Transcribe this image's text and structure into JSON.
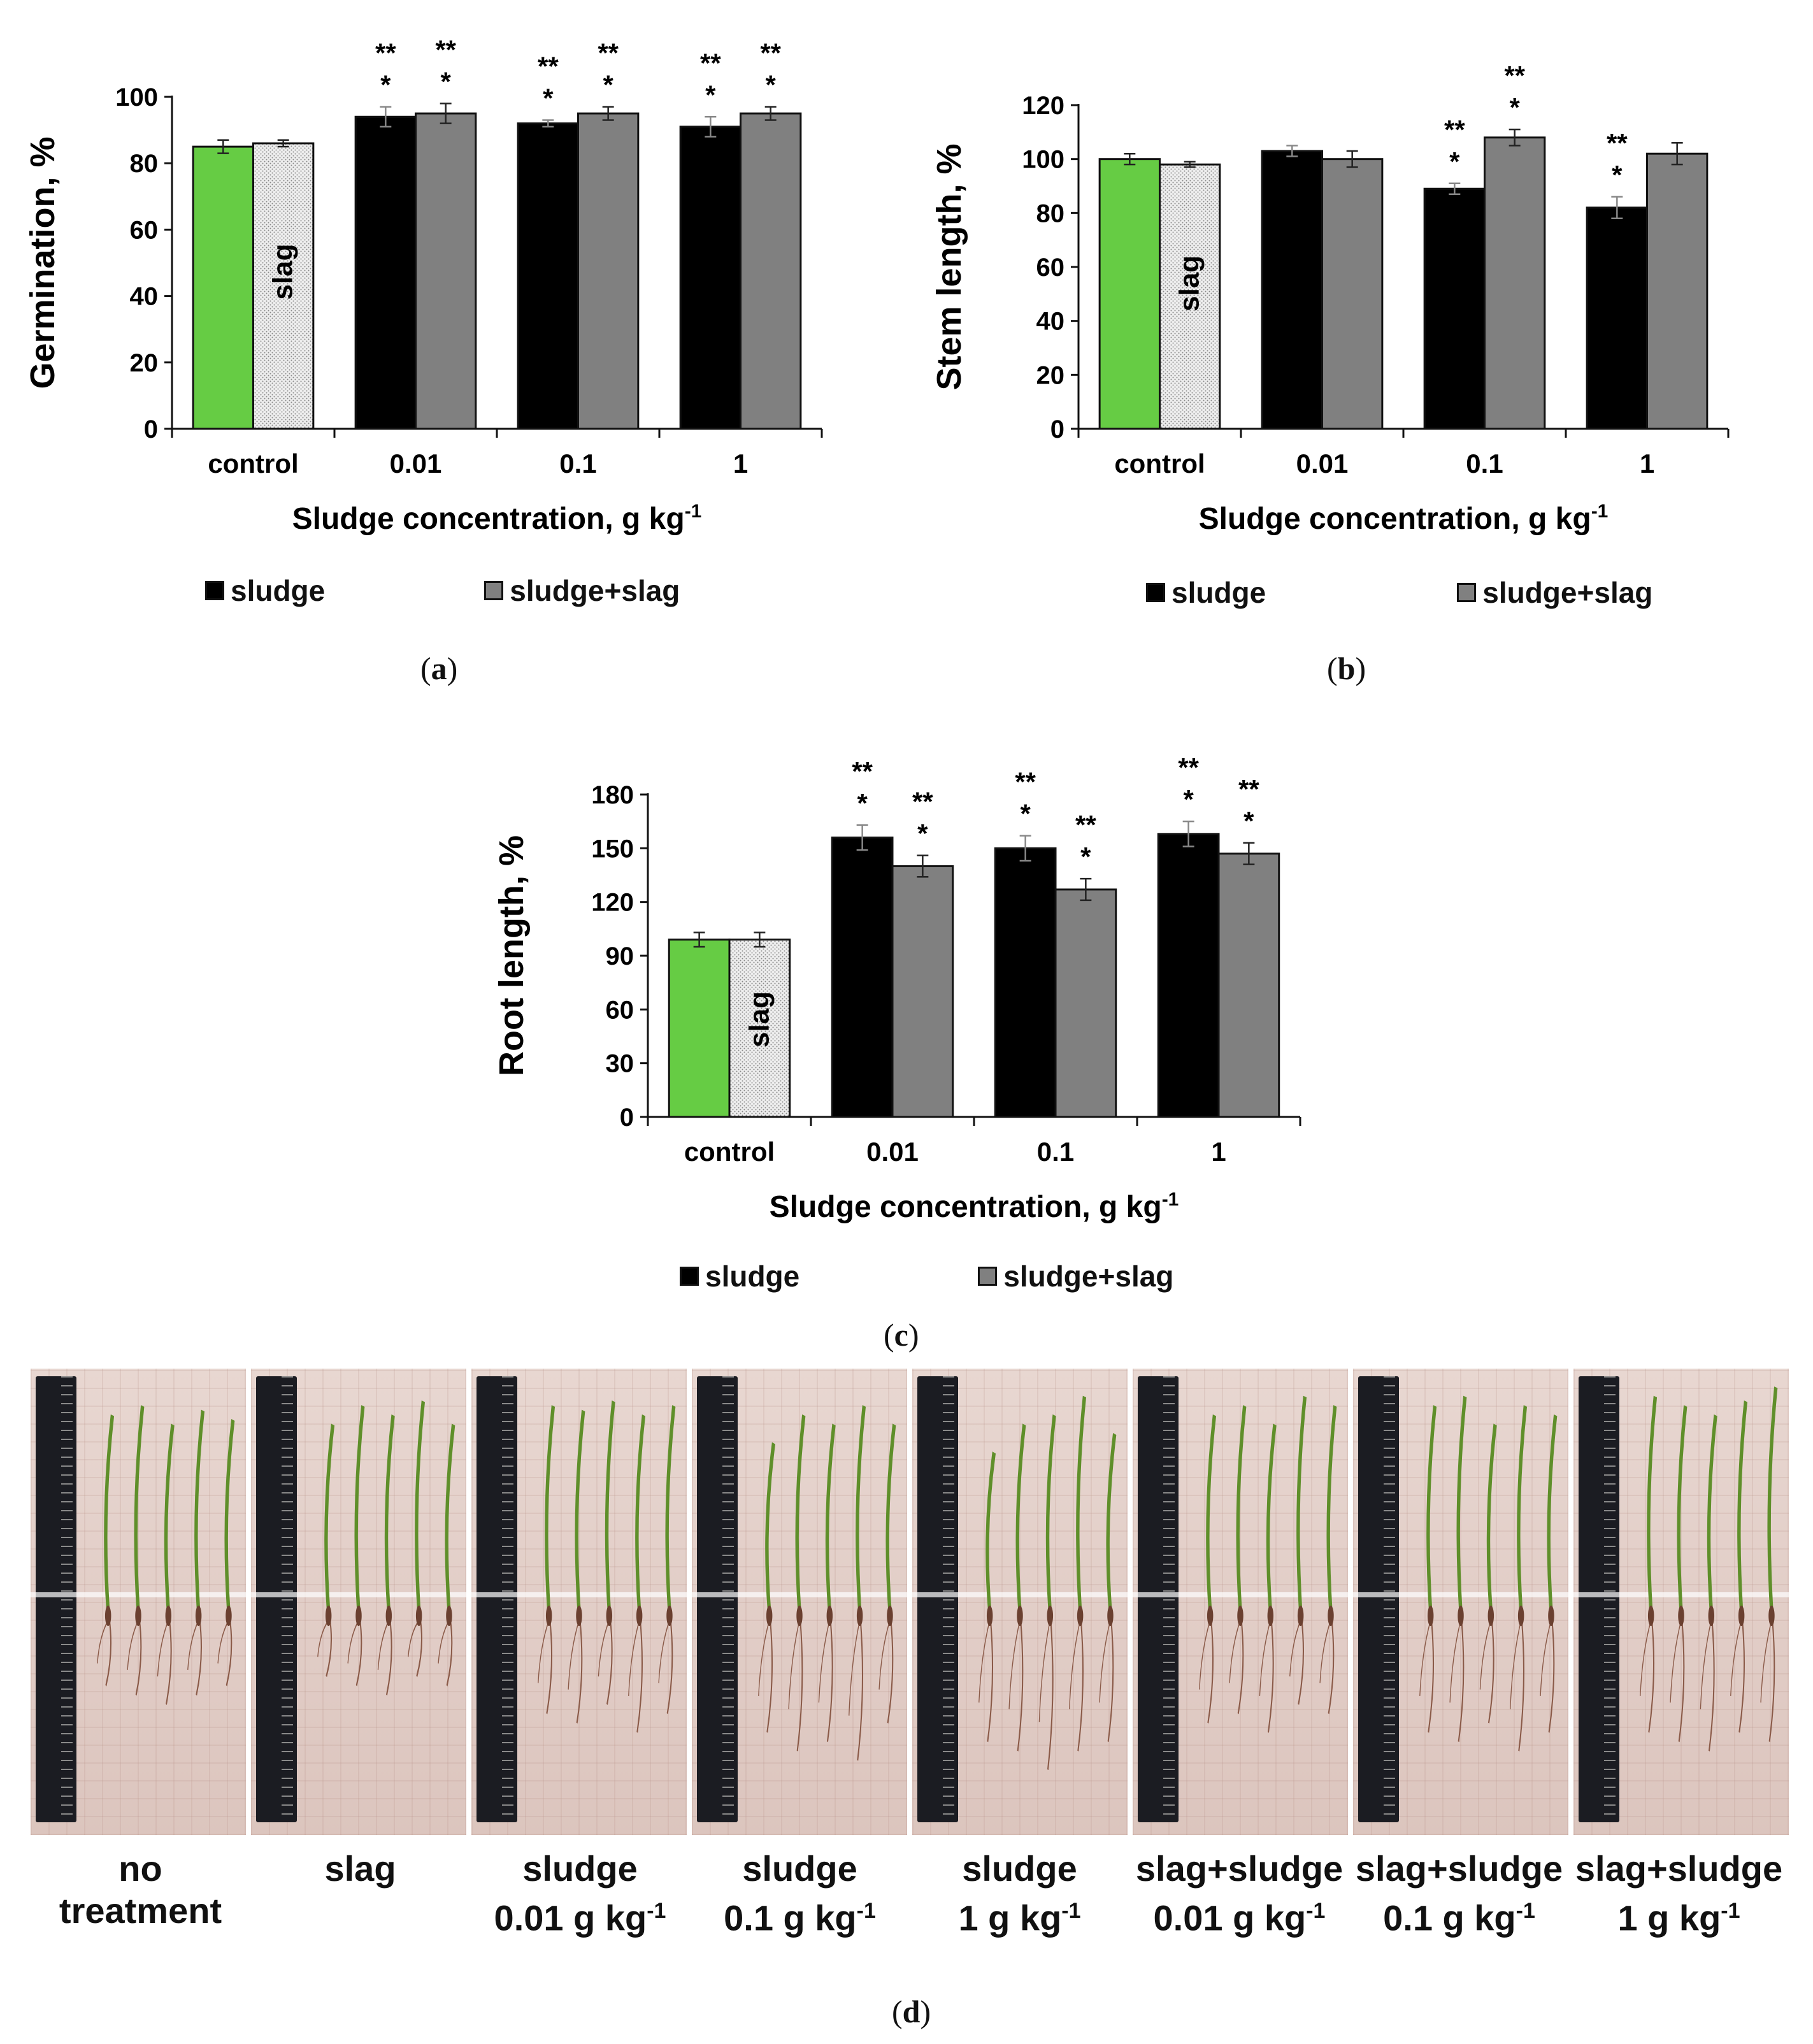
{
  "colors": {
    "control": "#66cc44",
    "sludge": "#000000",
    "sludge_slag": "#808080",
    "slag_fill": "#eeeeee"
  },
  "chart_data": [
    {
      "type": "bar",
      "panel": "a",
      "ylabel": "Germination, %",
      "xlabel_main": "Sludge concentration, g kg",
      "xlabel_sup": "-1",
      "ylim": [
        0,
        100
      ],
      "yticks": [
        0,
        20,
        40,
        60,
        80,
        100
      ],
      "categories": [
        "control",
        "0.01",
        "0.1",
        "1"
      ],
      "bar_inside_label": "slag",
      "series": [
        {
          "name": "sludge",
          "values": [
            85,
            94,
            92,
            91
          ],
          "errors": [
            2,
            3,
            1,
            3
          ],
          "marks": [
            "",
            "**|*",
            "**|*",
            "**|*"
          ]
        },
        {
          "name": "sludge+slag",
          "values": [
            86,
            95,
            95,
            95
          ],
          "errors": [
            1,
            3,
            2,
            2
          ],
          "marks": [
            "",
            "**|*",
            "**|*",
            "**|*"
          ]
        }
      ],
      "legend": [
        "sludge",
        "sludge+slag"
      ]
    },
    {
      "type": "bar",
      "panel": "b",
      "ylabel": "Stem length, %",
      "xlabel_main": "Sludge concentration, g kg",
      "xlabel_sup": "-1",
      "ylim": [
        0,
        120
      ],
      "yticks": [
        0,
        20,
        40,
        60,
        80,
        100,
        120
      ],
      "categories": [
        "control",
        "0.01",
        "0.1",
        "1"
      ],
      "bar_inside_label": "slag",
      "series": [
        {
          "name": "sludge",
          "values": [
            100,
            103,
            89,
            82
          ],
          "errors": [
            2,
            2,
            2,
            4
          ],
          "marks": [
            "",
            "",
            "**|*",
            "**|*"
          ]
        },
        {
          "name": "sludge+slag",
          "values": [
            98,
            100,
            108,
            102
          ],
          "errors": [
            1,
            3,
            3,
            4
          ],
          "marks": [
            "",
            "",
            "**|*",
            ""
          ]
        }
      ],
      "legend": [
        "sludge",
        "sludge+slag"
      ]
    },
    {
      "type": "bar",
      "panel": "c",
      "ylabel": "Root length, %",
      "xlabel_main": "Sludge concentration, g kg",
      "xlabel_sup": "-1",
      "ylim": [
        0,
        180
      ],
      "yticks": [
        0,
        30,
        60,
        90,
        120,
        150,
        180
      ],
      "categories": [
        "control",
        "0.01",
        "0.1",
        "1"
      ],
      "bar_inside_label": "slag",
      "series": [
        {
          "name": "sludge",
          "values": [
            99,
            156,
            150,
            158
          ],
          "errors": [
            4,
            7,
            7,
            7
          ],
          "marks": [
            "",
            "**|*",
            "**|*",
            "**|*"
          ]
        },
        {
          "name": "sludge+slag",
          "values": [
            99,
            140,
            127,
            147
          ],
          "errors": [
            4,
            6,
            6,
            6
          ],
          "marks": [
            "",
            "**|*",
            "**|*",
            "**|*"
          ]
        }
      ],
      "legend": [
        "sludge",
        "sludge+slag"
      ]
    }
  ],
  "captions": {
    "a": "a",
    "b": "b",
    "c": "c",
    "d": "d"
  },
  "photos": {
    "labels": [
      {
        "line1": "no",
        "line2": "treatment",
        "sup": ""
      },
      {
        "line1": "slag",
        "line2": "",
        "sup": ""
      },
      {
        "line1": "sludge",
        "line2": "0.01 g kg",
        "sup": "-1"
      },
      {
        "line1": "sludge",
        "line2": "0.1 g kg",
        "sup": "-1"
      },
      {
        "line1": "sludge",
        "line2": "1 g kg",
        "sup": "-1"
      },
      {
        "line1": "slag+sludge",
        "line2": "0.01 g kg",
        "sup": "-1"
      },
      {
        "line1": "slag+sludge",
        "line2": "0.1 g kg",
        "sup": "-1"
      },
      {
        "line1": "slag+sludge",
        "line2": "1 g kg",
        "sup": "-1"
      }
    ]
  }
}
